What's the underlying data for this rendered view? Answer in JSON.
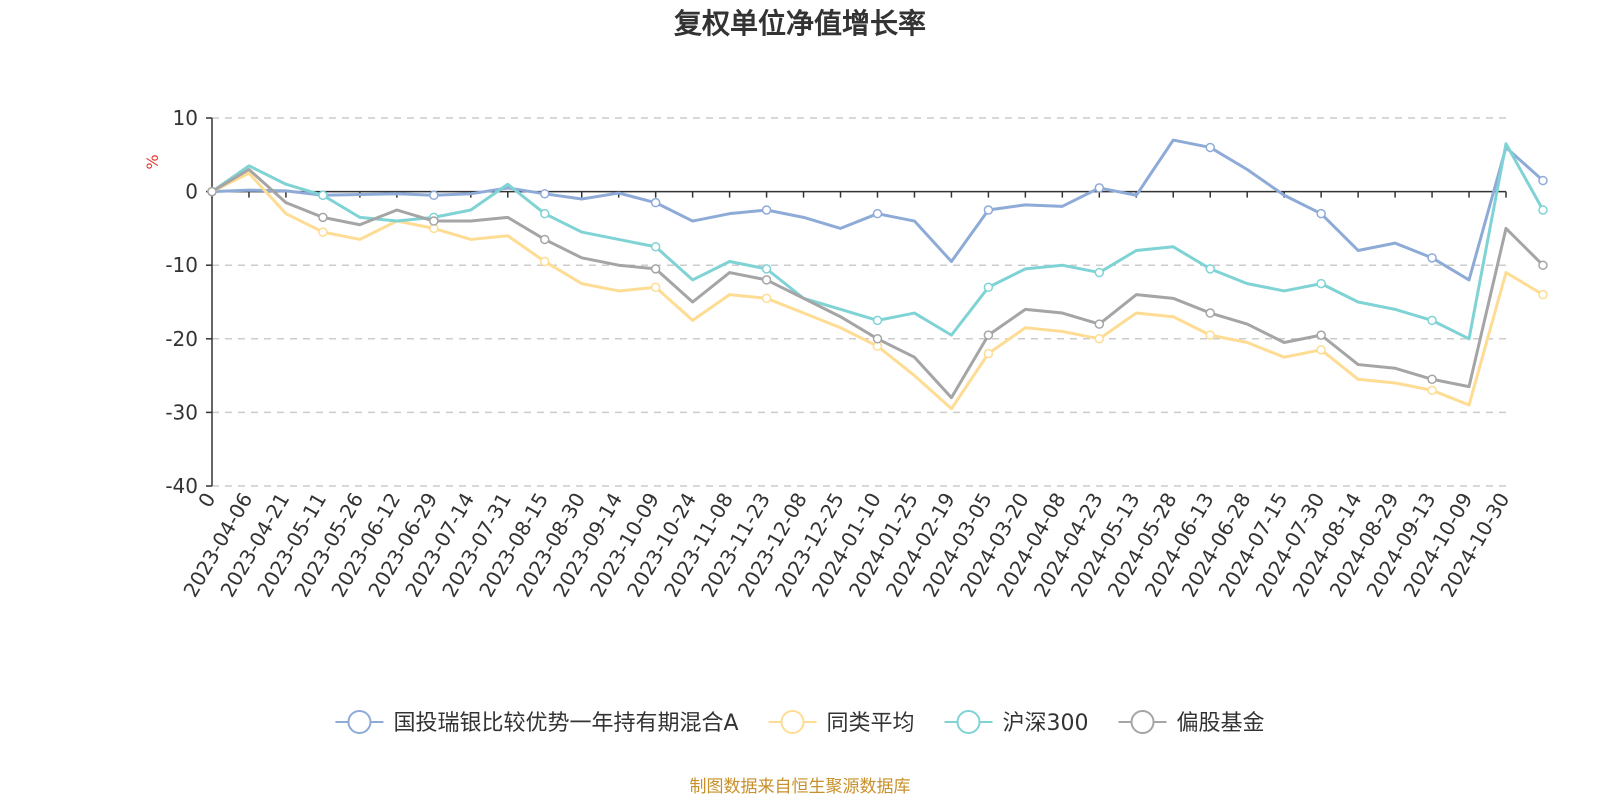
{
  "chart_data": {
    "type": "line",
    "title": "复权单位净值增长率",
    "ylabel": "%",
    "ylim": [
      -40,
      10
    ],
    "yticks": [
      10,
      0,
      -10,
      -20,
      -30,
      -40
    ],
    "grid": true,
    "legend_position": "bottom-center",
    "x_ticks": [
      "0",
      "2023-04-06",
      "2023-04-21",
      "2023-05-11",
      "2023-05-26",
      "2023-06-12",
      "2023-06-29",
      "2023-07-14",
      "2023-07-31",
      "2023-08-15",
      "2023-08-30",
      "2023-09-14",
      "2023-10-09",
      "2023-10-24",
      "2023-11-08",
      "2023-11-23",
      "2023-12-08",
      "2023-12-25",
      "2024-01-10",
      "2024-01-25",
      "2024-02-19",
      "2024-03-05",
      "2024-03-20",
      "2024-04-08",
      "2024-04-23",
      "2024-05-13",
      "2024-05-28",
      "2024-06-13",
      "2024-06-28",
      "2024-07-15",
      "2024-07-30",
      "2024-08-14",
      "2024-08-29",
      "2024-09-13",
      "2024-10-09",
      "2024-10-30"
    ],
    "series": [
      {
        "name": "国投瑞银比较优势一年持有期混合A",
        "color": "#8eabd8",
        "values": [
          0,
          0.2,
          0.1,
          -0.5,
          -0.4,
          -0.3,
          -0.5,
          -0.3,
          0.5,
          -0.3,
          -1.0,
          -0.2,
          -1.5,
          -4.0,
          -3.0,
          -2.5,
          -3.5,
          -5.0,
          -3.0,
          -4.0,
          -9.5,
          -2.5,
          -1.8,
          -2.0,
          0.5,
          -0.5,
          7.0,
          6.0,
          3.0,
          -0.5,
          -3.0,
          -8.0,
          -7.0,
          -9.0,
          -12.0,
          6.0,
          1.5
        ]
      },
      {
        "name": "同类平均",
        "color": "#fedc93",
        "values": [
          0,
          2.5,
          -3.0,
          -5.5,
          -6.5,
          -4.0,
          -5.0,
          -6.5,
          -6.0,
          -9.5,
          -12.5,
          -13.5,
          -13.0,
          -17.5,
          -14.0,
          -14.5,
          -16.5,
          -18.5,
          -21.0,
          -25.0,
          -29.5,
          -22.0,
          -18.5,
          -19.0,
          -20.0,
          -16.5,
          -17.0,
          -19.5,
          -20.5,
          -22.5,
          -21.5,
          -25.5,
          -26.0,
          -27.0,
          -29.0,
          -11.0,
          -14.0
        ]
      },
      {
        "name": "沪深300",
        "color": "#80d3d5",
        "values": [
          0,
          3.5,
          1.0,
          -0.5,
          -3.5,
          -4.0,
          -3.5,
          -2.5,
          1.0,
          -3.0,
          -5.5,
          -6.5,
          -7.5,
          -12.0,
          -9.5,
          -10.5,
          -14.5,
          -16.0,
          -17.5,
          -16.5,
          -19.5,
          -13.0,
          -10.5,
          -10.0,
          -11.0,
          -8.0,
          -7.5,
          -10.5,
          -12.5,
          -13.5,
          -12.5,
          -15.0,
          -16.0,
          -17.5,
          -20.0,
          6.5,
          -2.5
        ]
      },
      {
        "name": "偏股基金",
        "color": "#a5a5a5",
        "values": [
          0,
          3.0,
          -1.5,
          -3.5,
          -4.5,
          -2.5,
          -4.0,
          -4.0,
          -3.5,
          -6.5,
          -9.0,
          -10.0,
          -10.5,
          -15.0,
          -11.0,
          -12.0,
          -14.5,
          -17.0,
          -20.0,
          -22.5,
          -28.0,
          -19.5,
          -16.0,
          -16.5,
          -18.0,
          -14.0,
          -14.5,
          -16.5,
          -18.0,
          -20.5,
          -19.5,
          -23.5,
          -24.0,
          -25.5,
          -26.5,
          -5.0,
          -10.0
        ]
      }
    ]
  },
  "source_note": "制图数据来自恒生聚源数据库",
  "colors": {
    "source": "#c8902a",
    "unit": "#e53935",
    "axis": "#333333",
    "grid": "#cccccc"
  }
}
